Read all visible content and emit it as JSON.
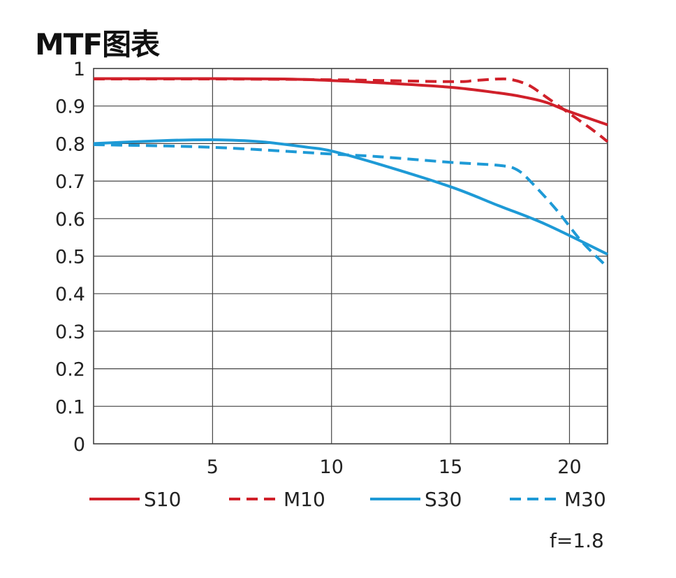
{
  "chart_data": {
    "type": "line",
    "title": "MTF图表",
    "xlabel": "",
    "ylabel": "",
    "xlim": [
      0,
      21.6
    ],
    "ylim": [
      0,
      1
    ],
    "x_ticks": [
      5,
      10,
      15,
      20
    ],
    "y_ticks": [
      0,
      0.1,
      0.2,
      0.3,
      0.4,
      0.5,
      0.6,
      0.7,
      0.8,
      0.9,
      1
    ],
    "y_tick_labels": [
      "0",
      "0.1",
      "0.2",
      "0.3",
      "0.4",
      "0.5",
      "0.6",
      "0.7",
      "0.8",
      "0.9",
      "1"
    ],
    "x_tick_labels": [
      "5",
      "10",
      "15",
      "20"
    ],
    "grid": true,
    "legend_position": "bottom",
    "annotation": "f=1.8",
    "series": [
      {
        "name": "S10",
        "color": "#d0202a",
        "style": "solid",
        "x": [
          0,
          5,
          8,
          10,
          12,
          15,
          17,
          18,
          19,
          20,
          21.6
        ],
        "y": [
          0.973,
          0.973,
          0.972,
          0.968,
          0.962,
          0.95,
          0.935,
          0.925,
          0.91,
          0.885,
          0.85
        ]
      },
      {
        "name": "M10",
        "color": "#d0202a",
        "style": "dashed",
        "x": [
          0,
          5,
          10,
          15,
          16,
          17,
          17.6,
          18.3,
          19,
          20,
          21,
          21.6
        ],
        "y": [
          0.972,
          0.972,
          0.97,
          0.965,
          0.968,
          0.972,
          0.97,
          0.955,
          0.925,
          0.88,
          0.835,
          0.805
        ]
      },
      {
        "name": "S30",
        "color": "#1e9ad6",
        "style": "solid",
        "x": [
          0,
          3,
          5,
          7,
          9,
          10,
          12,
          15,
          17,
          19,
          21.6
        ],
        "y": [
          0.8,
          0.808,
          0.81,
          0.805,
          0.79,
          0.78,
          0.745,
          0.685,
          0.635,
          0.585,
          0.505
        ]
      },
      {
        "name": "M30",
        "color": "#1e9ad6",
        "style": "dashed",
        "x": [
          0,
          5,
          10,
          12,
          15,
          17,
          17.8,
          18.5,
          19.5,
          20.5,
          21.6
        ],
        "y": [
          0.797,
          0.79,
          0.772,
          0.765,
          0.75,
          0.742,
          0.73,
          0.69,
          0.62,
          0.54,
          0.47
        ]
      }
    ]
  },
  "legend": {
    "items": [
      {
        "label": "S10"
      },
      {
        "label": "M10"
      },
      {
        "label": "S30"
      },
      {
        "label": "M30"
      }
    ]
  },
  "footnote": "f=1.8"
}
